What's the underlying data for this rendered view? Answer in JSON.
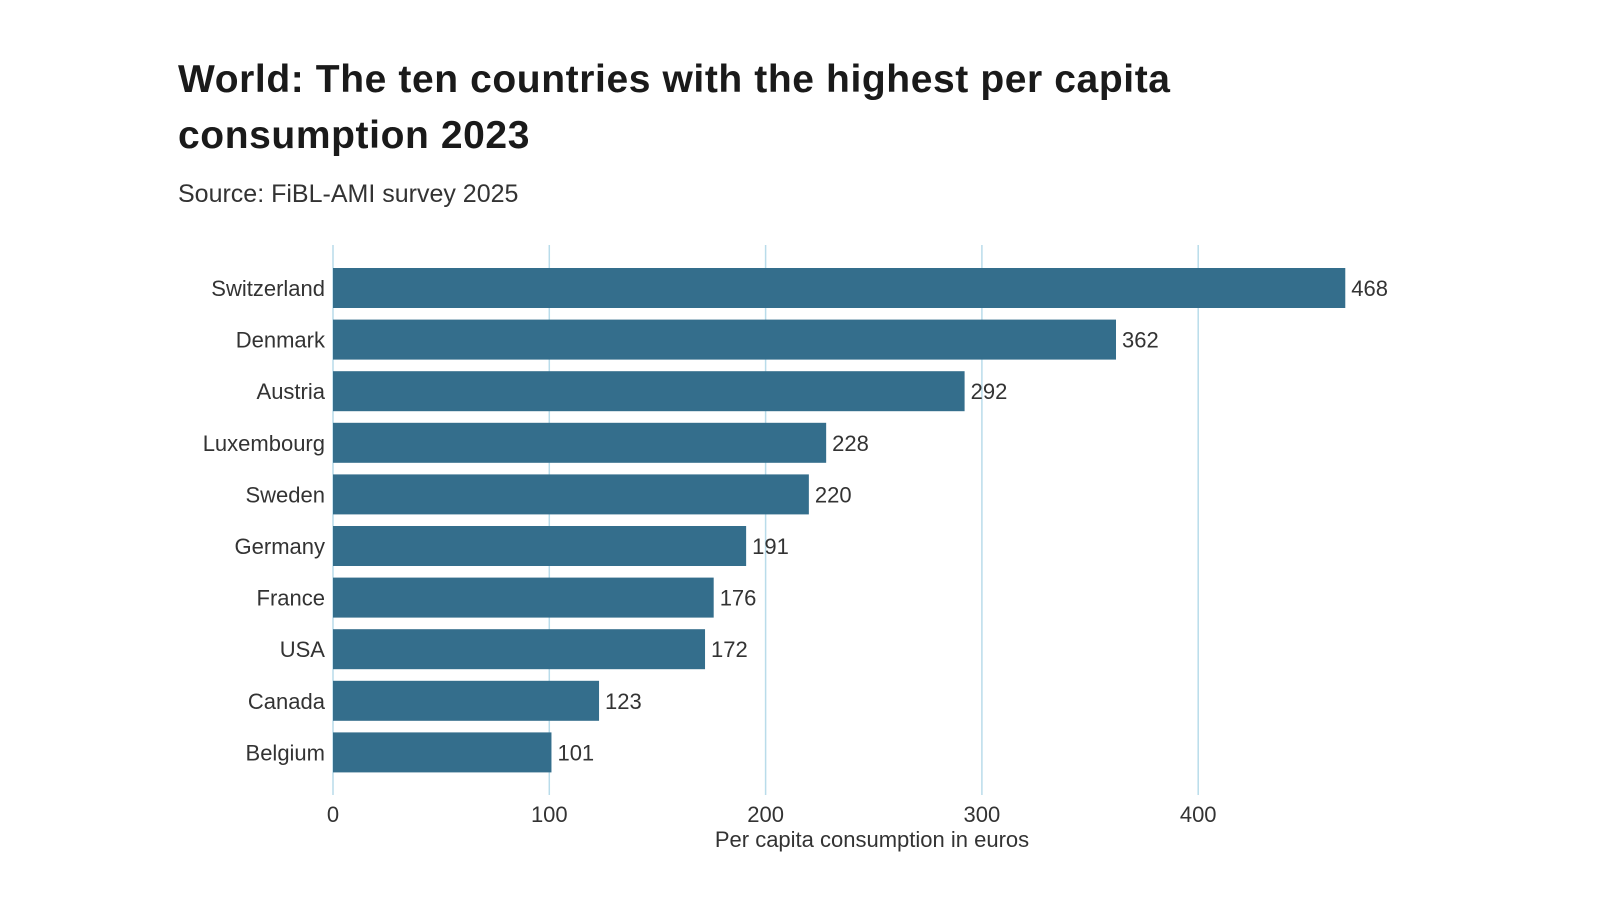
{
  "chart_data": {
    "type": "bar",
    "orientation": "horizontal",
    "title": "World: The ten countries with the highest per capita consumption 2023",
    "subtitle": "Source: FiBL-AMI survey 2025",
    "categories": [
      "Switzerland",
      "Denmark",
      "Austria",
      "Luxembourg",
      "Sweden",
      "Germany",
      "France",
      "USA",
      "Canada",
      "Belgium"
    ],
    "values": [
      468,
      362,
      292,
      228,
      220,
      191,
      176,
      172,
      123,
      101
    ],
    "xlabel": "Per capita consumption in euros",
    "ylabel": "",
    "xlim": [
      0,
      480
    ],
    "xticks": [
      0,
      100,
      200,
      300,
      400
    ],
    "grid": true,
    "data_labels": true,
    "bar_color": "#346e8c",
    "grid_color": "#b9dcea"
  }
}
